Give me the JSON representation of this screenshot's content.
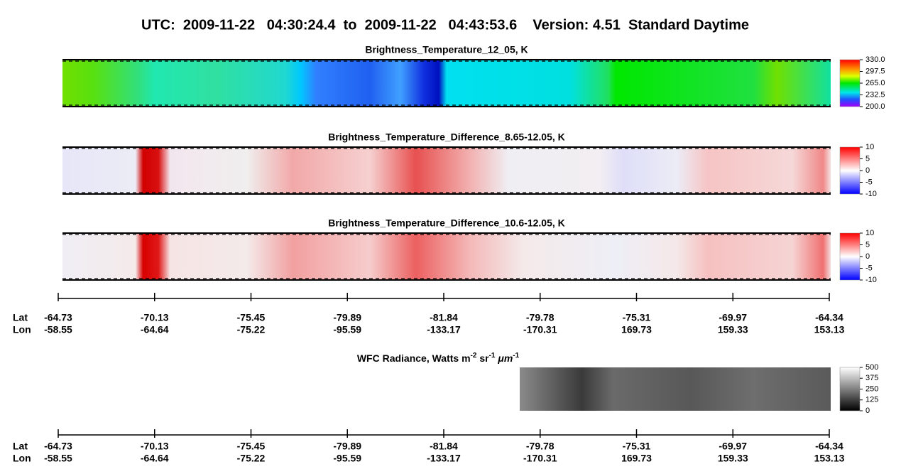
{
  "header": {
    "title": "UTC:  2009-11-22   04:30:24.4  to  2009-11-22   04:43:53.6    Version: 4.51  Standard Daytime"
  },
  "panels": [
    {
      "title": "Brightness_Temperature_12_05, K",
      "colorbar": [
        "330.0",
        "297.5",
        "265.0",
        "232.5",
        "200.0"
      ]
    },
    {
      "title": "Brightness_Temperature_Difference_8.65-12.05, K",
      "colorbar": [
        "10",
        "5",
        "0",
        "-5",
        "-10"
      ]
    },
    {
      "title": "Brightness_Temperature_Difference_10.6-12.05, K",
      "colorbar": [
        "10",
        "5",
        "0",
        "-5",
        "-10"
      ]
    }
  ],
  "axis": {
    "lat_label": "Lat",
    "lon_label": "Lon",
    "lat": [
      "-64.73",
      "-70.13",
      "-75.45",
      "-79.89",
      "-81.84",
      "-79.78",
      "-75.31",
      "-69.97",
      "-64.34"
    ],
    "lon": [
      "-58.55",
      "-64.64",
      "-75.22",
      "-95.59",
      "-133.17",
      "-170.31",
      "169.73",
      "159.33",
      "153.13"
    ]
  },
  "wfc": {
    "title_parts": [
      "WFC Radiance, Watts m",
      "-2",
      " sr",
      "-1",
      " ",
      "μm",
      "-1"
    ],
    "colorbar": [
      "500",
      "375",
      "250",
      "125",
      "0"
    ]
  }
}
